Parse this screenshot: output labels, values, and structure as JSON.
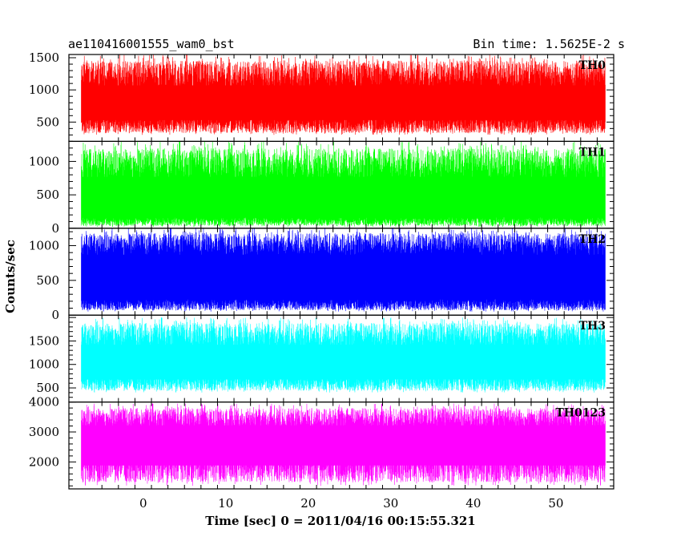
{
  "chart_data": {
    "type": "line",
    "title": "ae110416001555_wam0_bst",
    "subtitle": "Bin time: 1.5625E-2 s",
    "xlabel": "Time [sec] 0 = 2011/04/16 00:15:55.321",
    "ylabel": "Counts/sec",
    "xlim": [
      -9,
      57
    ],
    "xticks": [
      0,
      10,
      20,
      30,
      40,
      50
    ],
    "data_xrange": [
      -7.5,
      56.0
    ],
    "bin_time": 0.015625,
    "grid": false,
    "series": [
      {
        "name": "TH0",
        "color": "#ff0000",
        "ylim": [
          200,
          1550
        ],
        "yticks": [
          500,
          1000,
          1500
        ],
        "min": 300,
        "max": 1550,
        "typical_low": 450,
        "typical_high": 1150
      },
      {
        "name": "TH1",
        "color": "#00ff00",
        "ylim": [
          0,
          1300
        ],
        "yticks": [
          0,
          500,
          1000
        ],
        "min": 20,
        "max": 1300,
        "typical_low": 100,
        "typical_high": 850
      },
      {
        "name": "TH2",
        "color": "#0000ff",
        "ylim": [
          0,
          1250
        ],
        "yticks": [
          0,
          500,
          1000
        ],
        "min": 50,
        "max": 1250,
        "typical_low": 150,
        "typical_high": 950
      },
      {
        "name": "TH3",
        "color": "#00ffff",
        "ylim": [
          200,
          2050
        ],
        "yticks": [
          500,
          1000,
          1500
        ],
        "min": 400,
        "max": 2000,
        "typical_low": 600,
        "typical_high": 1500
      },
      {
        "name": "TH0123",
        "color": "#ff00ff",
        "ylim": [
          1100,
          4000
        ],
        "yticks": [
          2000,
          3000,
          4000
        ],
        "min": 1200,
        "max": 3950,
        "typical_low": 1800,
        "typical_high": 3300
      }
    ]
  }
}
